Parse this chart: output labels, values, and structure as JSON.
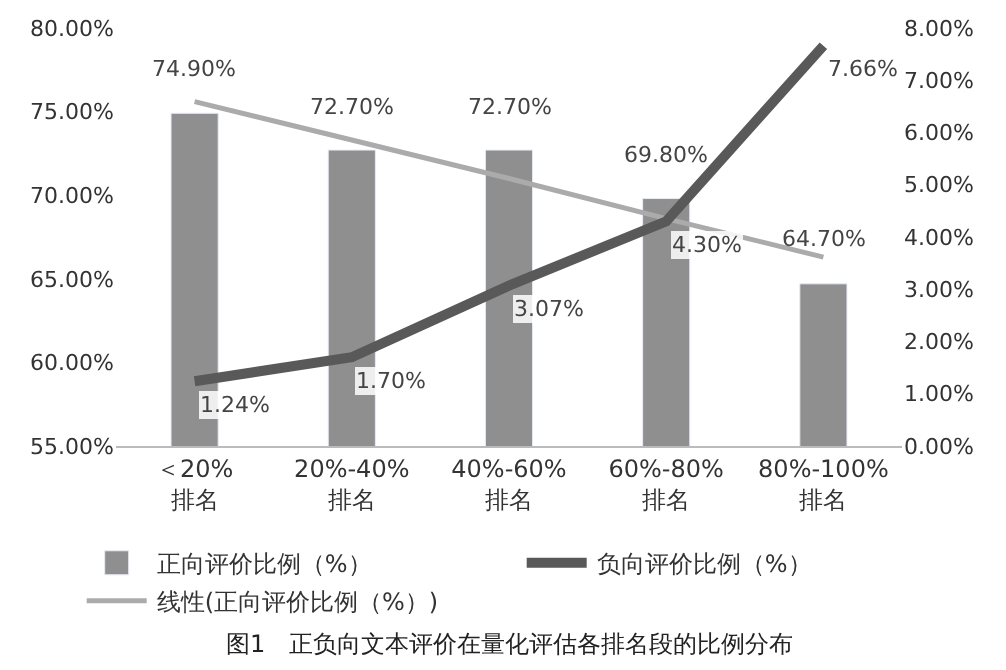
{
  "chart_data": {
    "type": "bar",
    "title": "图1　正负向文本评价在量化评估各排名段的比例分布",
    "categories": [
      "＜20%\n排名",
      "20%-40%\n排名",
      "40%-60%\n排名",
      "60%-80%\n排名",
      "80%-100%\n排名"
    ],
    "series": [
      {
        "name": "正向评价比例（%）",
        "color": "#8f8f8f",
        "values": [
          74.9,
          72.7,
          72.7,
          69.8,
          64.7
        ],
        "value_labels": [
          "74.90%",
          "72.70%",
          "72.70%",
          "69.80%",
          "64.70%"
        ]
      },
      {
        "name": "负向评价比例（%）",
        "type": "line",
        "axis": "y2",
        "color": "#595959",
        "values": [
          1.24,
          1.7,
          3.07,
          4.3,
          7.66
        ],
        "value_labels": [
          "1.24%",
          "1.70%",
          "3.07%",
          "4.30%",
          "7.66%"
        ]
      },
      {
        "name": "线性(正向评价比例（%）)",
        "type": "line",
        "color": "#ababab",
        "values": [
          75.6,
          73.3,
          71.0,
          68.6,
          66.3
        ]
      }
    ],
    "ylim": [
      55,
      80
    ],
    "yticks": [
      {
        "value": 55,
        "label": "55.00%"
      },
      {
        "value": 60,
        "label": "60.00%"
      },
      {
        "value": 65,
        "label": "65.00%"
      },
      {
        "value": 70,
        "label": "70.00%"
      },
      {
        "value": 75,
        "label": "75.00%"
      },
      {
        "value": 80,
        "label": "80.00%"
      }
    ],
    "y2lim": [
      0,
      8
    ],
    "y2ticks": [
      {
        "value": 0,
        "label": "0.00%"
      },
      {
        "value": 1,
        "label": "1.00%"
      },
      {
        "value": 2,
        "label": "2.00%"
      },
      {
        "value": 3,
        "label": "3.00%"
      },
      {
        "value": 4,
        "label": "4.00%"
      },
      {
        "value": 5,
        "label": "5.00%"
      },
      {
        "value": 6,
        "label": "6.00%"
      },
      {
        "value": 7,
        "label": "7.00%"
      },
      {
        "value": 8,
        "label": "8.00%"
      }
    ],
    "legend": "bottom",
    "marker": "none"
  }
}
